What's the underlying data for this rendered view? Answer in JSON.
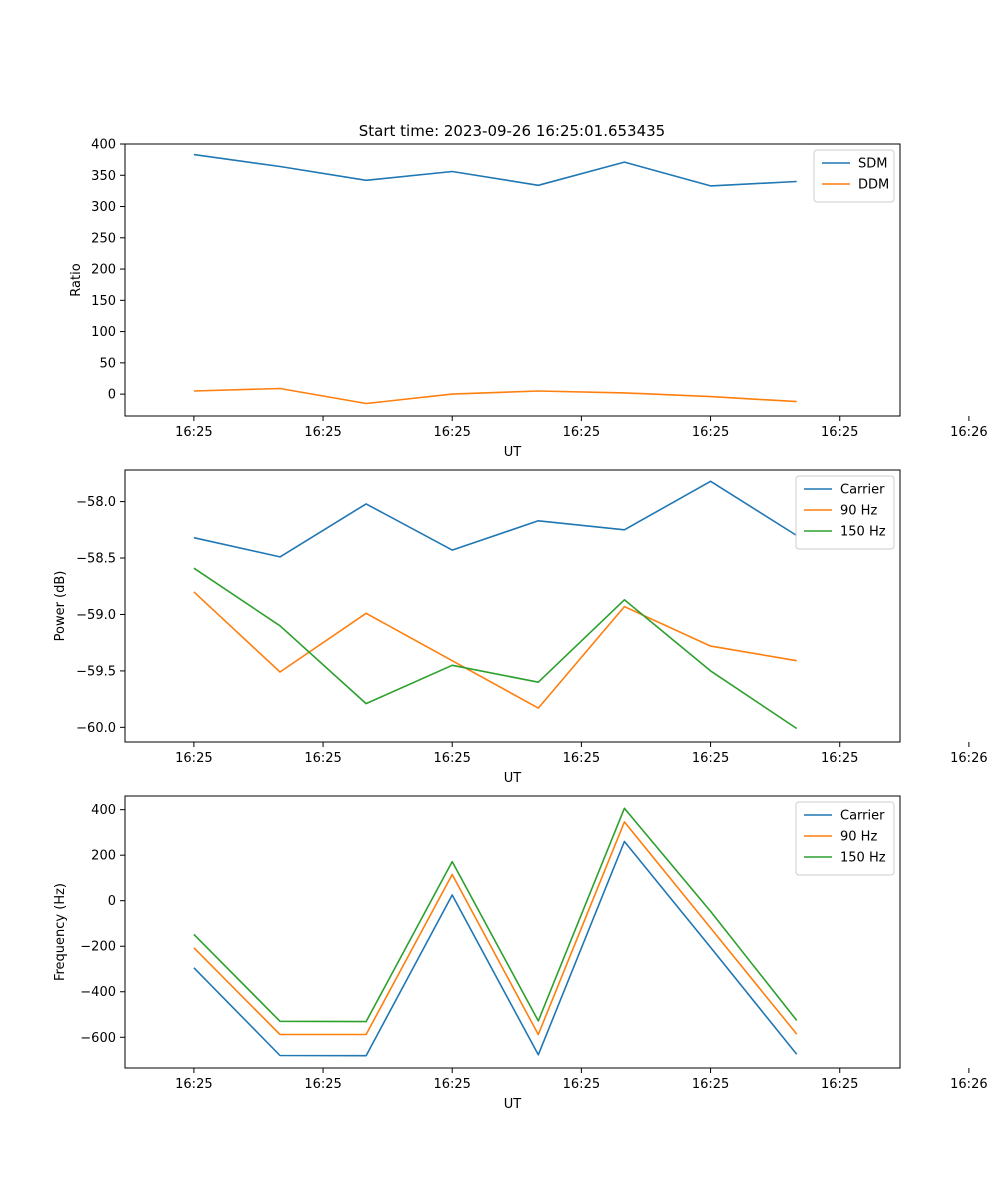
{
  "figure": {
    "title": "Start time: 2023-09-26 16:25:01.653435"
  },
  "chart_data": [
    {
      "type": "line",
      "xlabel": "UT",
      "ylabel": "Ratio",
      "xticks": [
        "16:25",
        "16:25",
        "16:25",
        "16:25",
        "16:25",
        "16:25",
        "16:26"
      ],
      "x": [
        1,
        2,
        3,
        4,
        5,
        6,
        7,
        8
      ],
      "xlim": [
        0.2,
        9.2
      ],
      "ylim": [
        -35,
        400
      ],
      "yticks": [
        0,
        50,
        100,
        150,
        200,
        250,
        300,
        350,
        400
      ],
      "legend": "top-right",
      "series": [
        {
          "name": "SDM",
          "color": "#1f77b4",
          "values": [
            383,
            364,
            342,
            356,
            334,
            371,
            333,
            340
          ]
        },
        {
          "name": "DDM",
          "color": "#ff7f0e",
          "values": [
            5,
            9,
            -15,
            0,
            5,
            2,
            -4,
            -12
          ]
        }
      ]
    },
    {
      "type": "line",
      "xlabel": "UT",
      "ylabel": "Power (dB)",
      "xticks": [
        "16:25",
        "16:25",
        "16:25",
        "16:25",
        "16:25",
        "16:25",
        "16:26"
      ],
      "x": [
        1,
        2,
        3,
        4,
        5,
        6,
        7,
        8
      ],
      "xlim": [
        0.2,
        9.2
      ],
      "ylim": [
        -60.13,
        -57.72
      ],
      "yticks": [
        -60.0,
        -59.5,
        -59.0,
        -58.5,
        -58.0
      ],
      "ytick_labels": [
        "−60.0",
        "−59.5",
        "−59.0",
        "−58.5",
        "−58.0"
      ],
      "legend": "top-right",
      "series": [
        {
          "name": "Carrier",
          "color": "#1f77b4",
          "values": [
            -58.32,
            -58.49,
            -58.02,
            -58.43,
            -58.17,
            -58.25,
            -57.82,
            -58.3
          ]
        },
        {
          "name": "90 Hz",
          "color": "#ff7f0e",
          "values": [
            -58.8,
            -59.51,
            -58.99,
            -59.41,
            -59.83,
            -58.93,
            -59.28,
            -59.41
          ]
        },
        {
          "name": "150 Hz",
          "color": "#2ca02c",
          "values": [
            -58.59,
            -59.1,
            -59.79,
            -59.45,
            -59.6,
            -58.87,
            -59.5,
            -60.01
          ]
        }
      ]
    },
    {
      "type": "line",
      "xlabel": "UT",
      "ylabel": "Frequency (Hz)",
      "xticks": [
        "16:25",
        "16:25",
        "16:25",
        "16:25",
        "16:25",
        "16:25",
        "16:26"
      ],
      "x": [
        1,
        2,
        3,
        4,
        5,
        6,
        7,
        8
      ],
      "xlim": [
        0.2,
        9.2
      ],
      "ylim": [
        -735,
        460
      ],
      "yticks": [
        -600,
        -400,
        -200,
        0,
        200,
        400
      ],
      "ytick_labels": [
        "−600",
        "−400",
        "−200",
        "0",
        "200",
        "400"
      ],
      "legend": "top-right",
      "series": [
        {
          "name": "Carrier",
          "color": "#1f77b4",
          "values": [
            -295,
            -680,
            -681,
            25,
            -677,
            260,
            -205,
            -675
          ]
        },
        {
          "name": "90 Hz",
          "color": "#ff7f0e",
          "values": [
            -207,
            -588,
            -588,
            115,
            -588,
            346,
            -120,
            -586
          ]
        },
        {
          "name": "150 Hz",
          "color": "#2ca02c",
          "values": [
            -148,
            -530,
            -531,
            172,
            -528,
            406,
            -47,
            -526
          ]
        }
      ]
    }
  ]
}
